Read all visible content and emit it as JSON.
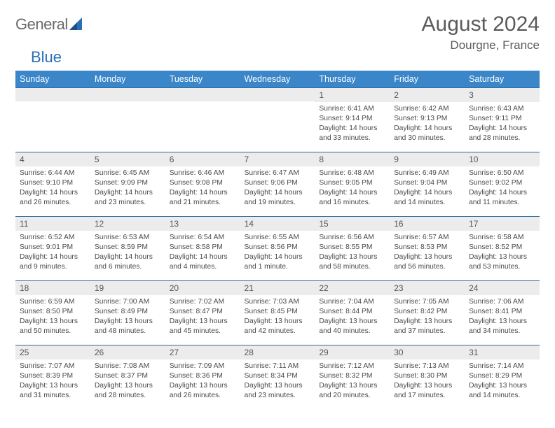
{
  "brand": {
    "word1": "General",
    "word2": "Blue"
  },
  "title": "August 2024",
  "location": "Dourgne, France",
  "colors": {
    "header_bg": "#3a86c8",
    "header_text": "#ffffff",
    "row_divider": "#2f6aa3",
    "daynum_bg": "#ececec",
    "text_gray": "#5b5b5b"
  },
  "day_headers": [
    "Sunday",
    "Monday",
    "Tuesday",
    "Wednesday",
    "Thursday",
    "Friday",
    "Saturday"
  ],
  "weeks": [
    [
      {
        "n": "",
        "l1": "",
        "l2": "",
        "l3": "",
        "l4": ""
      },
      {
        "n": "",
        "l1": "",
        "l2": "",
        "l3": "",
        "l4": ""
      },
      {
        "n": "",
        "l1": "",
        "l2": "",
        "l3": "",
        "l4": ""
      },
      {
        "n": "",
        "l1": "",
        "l2": "",
        "l3": "",
        "l4": ""
      },
      {
        "n": "1",
        "l1": "Sunrise: 6:41 AM",
        "l2": "Sunset: 9:14 PM",
        "l3": "Daylight: 14 hours",
        "l4": "and 33 minutes."
      },
      {
        "n": "2",
        "l1": "Sunrise: 6:42 AM",
        "l2": "Sunset: 9:13 PM",
        "l3": "Daylight: 14 hours",
        "l4": "and 30 minutes."
      },
      {
        "n": "3",
        "l1": "Sunrise: 6:43 AM",
        "l2": "Sunset: 9:11 PM",
        "l3": "Daylight: 14 hours",
        "l4": "and 28 minutes."
      }
    ],
    [
      {
        "n": "4",
        "l1": "Sunrise: 6:44 AM",
        "l2": "Sunset: 9:10 PM",
        "l3": "Daylight: 14 hours",
        "l4": "and 26 minutes."
      },
      {
        "n": "5",
        "l1": "Sunrise: 6:45 AM",
        "l2": "Sunset: 9:09 PM",
        "l3": "Daylight: 14 hours",
        "l4": "and 23 minutes."
      },
      {
        "n": "6",
        "l1": "Sunrise: 6:46 AM",
        "l2": "Sunset: 9:08 PM",
        "l3": "Daylight: 14 hours",
        "l4": "and 21 minutes."
      },
      {
        "n": "7",
        "l1": "Sunrise: 6:47 AM",
        "l2": "Sunset: 9:06 PM",
        "l3": "Daylight: 14 hours",
        "l4": "and 19 minutes."
      },
      {
        "n": "8",
        "l1": "Sunrise: 6:48 AM",
        "l2": "Sunset: 9:05 PM",
        "l3": "Daylight: 14 hours",
        "l4": "and 16 minutes."
      },
      {
        "n": "9",
        "l1": "Sunrise: 6:49 AM",
        "l2": "Sunset: 9:04 PM",
        "l3": "Daylight: 14 hours",
        "l4": "and 14 minutes."
      },
      {
        "n": "10",
        "l1": "Sunrise: 6:50 AM",
        "l2": "Sunset: 9:02 PM",
        "l3": "Daylight: 14 hours",
        "l4": "and 11 minutes."
      }
    ],
    [
      {
        "n": "11",
        "l1": "Sunrise: 6:52 AM",
        "l2": "Sunset: 9:01 PM",
        "l3": "Daylight: 14 hours",
        "l4": "and 9 minutes."
      },
      {
        "n": "12",
        "l1": "Sunrise: 6:53 AM",
        "l2": "Sunset: 8:59 PM",
        "l3": "Daylight: 14 hours",
        "l4": "and 6 minutes."
      },
      {
        "n": "13",
        "l1": "Sunrise: 6:54 AM",
        "l2": "Sunset: 8:58 PM",
        "l3": "Daylight: 14 hours",
        "l4": "and 4 minutes."
      },
      {
        "n": "14",
        "l1": "Sunrise: 6:55 AM",
        "l2": "Sunset: 8:56 PM",
        "l3": "Daylight: 14 hours",
        "l4": "and 1 minute."
      },
      {
        "n": "15",
        "l1": "Sunrise: 6:56 AM",
        "l2": "Sunset: 8:55 PM",
        "l3": "Daylight: 13 hours",
        "l4": "and 58 minutes."
      },
      {
        "n": "16",
        "l1": "Sunrise: 6:57 AM",
        "l2": "Sunset: 8:53 PM",
        "l3": "Daylight: 13 hours",
        "l4": "and 56 minutes."
      },
      {
        "n": "17",
        "l1": "Sunrise: 6:58 AM",
        "l2": "Sunset: 8:52 PM",
        "l3": "Daylight: 13 hours",
        "l4": "and 53 minutes."
      }
    ],
    [
      {
        "n": "18",
        "l1": "Sunrise: 6:59 AM",
        "l2": "Sunset: 8:50 PM",
        "l3": "Daylight: 13 hours",
        "l4": "and 50 minutes."
      },
      {
        "n": "19",
        "l1": "Sunrise: 7:00 AM",
        "l2": "Sunset: 8:49 PM",
        "l3": "Daylight: 13 hours",
        "l4": "and 48 minutes."
      },
      {
        "n": "20",
        "l1": "Sunrise: 7:02 AM",
        "l2": "Sunset: 8:47 PM",
        "l3": "Daylight: 13 hours",
        "l4": "and 45 minutes."
      },
      {
        "n": "21",
        "l1": "Sunrise: 7:03 AM",
        "l2": "Sunset: 8:45 PM",
        "l3": "Daylight: 13 hours",
        "l4": "and 42 minutes."
      },
      {
        "n": "22",
        "l1": "Sunrise: 7:04 AM",
        "l2": "Sunset: 8:44 PM",
        "l3": "Daylight: 13 hours",
        "l4": "and 40 minutes."
      },
      {
        "n": "23",
        "l1": "Sunrise: 7:05 AM",
        "l2": "Sunset: 8:42 PM",
        "l3": "Daylight: 13 hours",
        "l4": "and 37 minutes."
      },
      {
        "n": "24",
        "l1": "Sunrise: 7:06 AM",
        "l2": "Sunset: 8:41 PM",
        "l3": "Daylight: 13 hours",
        "l4": "and 34 minutes."
      }
    ],
    [
      {
        "n": "25",
        "l1": "Sunrise: 7:07 AM",
        "l2": "Sunset: 8:39 PM",
        "l3": "Daylight: 13 hours",
        "l4": "and 31 minutes."
      },
      {
        "n": "26",
        "l1": "Sunrise: 7:08 AM",
        "l2": "Sunset: 8:37 PM",
        "l3": "Daylight: 13 hours",
        "l4": "and 28 minutes."
      },
      {
        "n": "27",
        "l1": "Sunrise: 7:09 AM",
        "l2": "Sunset: 8:36 PM",
        "l3": "Daylight: 13 hours",
        "l4": "and 26 minutes."
      },
      {
        "n": "28",
        "l1": "Sunrise: 7:11 AM",
        "l2": "Sunset: 8:34 PM",
        "l3": "Daylight: 13 hours",
        "l4": "and 23 minutes."
      },
      {
        "n": "29",
        "l1": "Sunrise: 7:12 AM",
        "l2": "Sunset: 8:32 PM",
        "l3": "Daylight: 13 hours",
        "l4": "and 20 minutes."
      },
      {
        "n": "30",
        "l1": "Sunrise: 7:13 AM",
        "l2": "Sunset: 8:30 PM",
        "l3": "Daylight: 13 hours",
        "l4": "and 17 minutes."
      },
      {
        "n": "31",
        "l1": "Sunrise: 7:14 AM",
        "l2": "Sunset: 8:29 PM",
        "l3": "Daylight: 13 hours",
        "l4": "and 14 minutes."
      }
    ]
  ]
}
